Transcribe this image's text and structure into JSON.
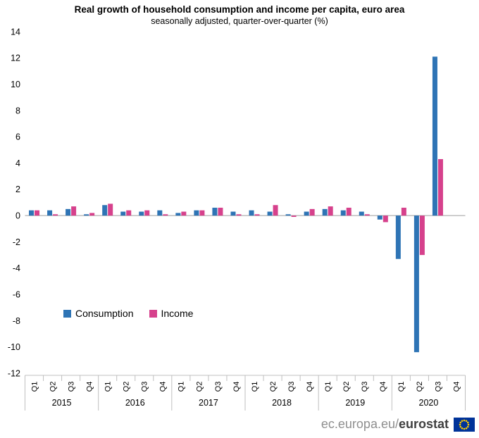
{
  "chart_data": {
    "type": "bar",
    "title": "Real growth of household consumption and income per capita, euro area",
    "subtitle": "seasonally adjusted, quarter-over-quarter (%)",
    "ylabel": "",
    "ylim": [
      -12,
      14
    ],
    "ytick_step": 2,
    "grid": false,
    "legend_position": "inside-bottom-left",
    "years": [
      "2015",
      "2016",
      "2017",
      "2018",
      "2019",
      "2020"
    ],
    "quarters_per_year": [
      "Q1",
      "Q2",
      "Q3",
      "Q4"
    ],
    "series": [
      {
        "name": "Consumption",
        "color": "#2e74b5",
        "values": [
          0.4,
          0.4,
          0.5,
          0.1,
          0.8,
          0.3,
          0.3,
          0.4,
          0.2,
          0.4,
          0.6,
          0.3,
          0.4,
          0.3,
          0.1,
          0.3,
          0.5,
          0.4,
          0.3,
          -0.3,
          -3.3,
          -10.4,
          12.1,
          null
        ]
      },
      {
        "name": "Income",
        "color": "#d6418c",
        "values": [
          0.4,
          0.1,
          0.7,
          0.2,
          0.9,
          0.4,
          0.4,
          0.1,
          0.3,
          0.4,
          0.6,
          0.1,
          0.1,
          0.8,
          -0.1,
          0.5,
          0.7,
          0.6,
          0.1,
          -0.5,
          0.6,
          -3.0,
          4.3,
          null
        ]
      }
    ],
    "colors": {
      "zero_line": "#9d9d9d",
      "frame": "#bfbfbf",
      "text": "#000000"
    }
  },
  "footer": {
    "url_prefix": "ec.europa.eu/",
    "brand": "eurostat"
  },
  "colors": {
    "flag_blue": "#003399",
    "flag_stars": "#ffcc00",
    "footer_text": "#8f8f8f",
    "footer_brand": "#3f3f3f"
  }
}
